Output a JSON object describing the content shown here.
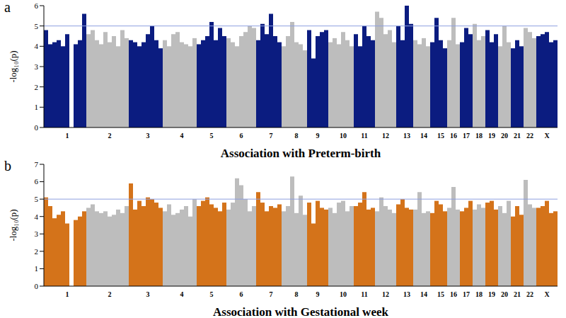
{
  "chart_data": [
    {
      "type": "bar",
      "panel_label": "a",
      "x_label": "Association with Preterm-birth",
      "y_label": "-log₁₀(p)",
      "categories": [
        null,
        null,
        null,
        null,
        null,
        "1",
        null,
        null,
        null,
        null,
        null,
        null,
        null,
        null,
        null,
        "2",
        null,
        null,
        null,
        null,
        null,
        null,
        null,
        null,
        "3",
        null,
        null,
        null,
        null,
        null,
        null,
        null,
        "4",
        null,
        null,
        null,
        null,
        null,
        null,
        "5",
        null,
        null,
        null,
        null,
        null,
        null,
        "6",
        null,
        null,
        null,
        null,
        null,
        null,
        "7",
        null,
        null,
        null,
        null,
        null,
        "8",
        null,
        null,
        null,
        null,
        "9",
        null,
        null,
        null,
        null,
        null,
        "10",
        null,
        null,
        null,
        null,
        "11",
        null,
        null,
        null,
        null,
        "12",
        null,
        null,
        null,
        null,
        "13",
        null,
        null,
        null,
        "14",
        null,
        null,
        null,
        "15",
        null,
        null,
        "16",
        null,
        null,
        "17",
        null,
        null,
        "18",
        null,
        null,
        "19",
        null,
        null,
        "20",
        null,
        null,
        "21",
        null,
        null,
        "22",
        null,
        null,
        null,
        "X",
        null,
        null
      ],
      "values": [
        4.8,
        4.1,
        4.2,
        4.3,
        4.0,
        4.6,
        null,
        4.1,
        4.3,
        5.6,
        4.6,
        4.8,
        4.3,
        4.1,
        4.7,
        4.2,
        4.5,
        4.0,
        4.8,
        4.4,
        4.3,
        4.2,
        4.0,
        4.2,
        4.6,
        5.0,
        4.3,
        3.9,
        4.3,
        4.0,
        4.6,
        4.7,
        4.2,
        4.1,
        4.0,
        4.4,
        4.1,
        4.3,
        4.5,
        5.2,
        4.3,
        4.9,
        4.5,
        4.4,
        4.2,
        4.0,
        4.5,
        4.7,
        5.0,
        4.9,
        4.3,
        5.1,
        4.6,
        5.6,
        4.5,
        4.2,
        4.0,
        4.5,
        5.2,
        4.2,
        4.1,
        3.8,
        4.8,
        3.4,
        4.5,
        4.7,
        4.8,
        4.2,
        4.4,
        4.1,
        4.7,
        4.3,
        4.0,
        4.6,
        4.0,
        5.0,
        4.5,
        4.3,
        5.7,
        5.4,
        4.6,
        4.8,
        4.2,
        5.0,
        4.3,
        6.0,
        5.1,
        4.3,
        4.1,
        4.4,
        4.0,
        4.2,
        5.4,
        4.3,
        3.9,
        4.3,
        5.4,
        4.1,
        4.2,
        4.9,
        4.6,
        5.1,
        4.3,
        4.5,
        4.8,
        4.2,
        4.6,
        4.0,
        5.0,
        4.2,
        3.9,
        4.3,
        4.0,
        4.9,
        4.7,
        4.4,
        4.5,
        4.6,
        4.7,
        4.2,
        4.3
      ],
      "colors": [
        "#0b1c80",
        "#0b1c80",
        "#0b1c80",
        "#0b1c80",
        "#0b1c80",
        "#0b1c80",
        "#0b1c80",
        "#0b1c80",
        "#0b1c80",
        "#0b1c80",
        "#bdbdbd",
        "#bdbdbd",
        "#bdbdbd",
        "#bdbdbd",
        "#bdbdbd",
        "#bdbdbd",
        "#bdbdbd",
        "#bdbdbd",
        "#bdbdbd",
        "#bdbdbd",
        "#0b1c80",
        "#0b1c80",
        "#0b1c80",
        "#0b1c80",
        "#0b1c80",
        "#0b1c80",
        "#0b1c80",
        "#0b1c80",
        "#bdbdbd",
        "#bdbdbd",
        "#bdbdbd",
        "#bdbdbd",
        "#bdbdbd",
        "#bdbdbd",
        "#bdbdbd",
        "#bdbdbd",
        "#0b1c80",
        "#0b1c80",
        "#0b1c80",
        "#0b1c80",
        "#0b1c80",
        "#0b1c80",
        "#0b1c80",
        "#bdbdbd",
        "#bdbdbd",
        "#bdbdbd",
        "#bdbdbd",
        "#bdbdbd",
        "#bdbdbd",
        "#bdbdbd",
        "#0b1c80",
        "#0b1c80",
        "#0b1c80",
        "#0b1c80",
        "#0b1c80",
        "#0b1c80",
        "#bdbdbd",
        "#bdbdbd",
        "#bdbdbd",
        "#bdbdbd",
        "#bdbdbd",
        "#bdbdbd",
        "#0b1c80",
        "#0b1c80",
        "#0b1c80",
        "#0b1c80",
        "#0b1c80",
        "#bdbdbd",
        "#bdbdbd",
        "#bdbdbd",
        "#bdbdbd",
        "#bdbdbd",
        "#bdbdbd",
        "#0b1c80",
        "#0b1c80",
        "#0b1c80",
        "#0b1c80",
        "#0b1c80",
        "#bdbdbd",
        "#bdbdbd",
        "#bdbdbd",
        "#bdbdbd",
        "#bdbdbd",
        "#0b1c80",
        "#0b1c80",
        "#0b1c80",
        "#0b1c80",
        "#bdbdbd",
        "#bdbdbd",
        "#bdbdbd",
        "#bdbdbd",
        "#0b1c80",
        "#0b1c80",
        "#0b1c80",
        "#0b1c80",
        "#bdbdbd",
        "#bdbdbd",
        "#bdbdbd",
        "#0b1c80",
        "#0b1c80",
        "#0b1c80",
        "#bdbdbd",
        "#bdbdbd",
        "#bdbdbd",
        "#0b1c80",
        "#0b1c80",
        "#0b1c80",
        "#bdbdbd",
        "#bdbdbd",
        "#bdbdbd",
        "#0b1c80",
        "#0b1c80",
        "#0b1c80",
        "#bdbdbd",
        "#bdbdbd",
        "#bdbdbd",
        "#0b1c80",
        "#0b1c80",
        "#0b1c80",
        "#0b1c80",
        "#0b1c80"
      ],
      "ylim": [
        0,
        6
      ],
      "yticks": [
        0,
        1,
        2,
        3,
        4,
        5,
        6
      ],
      "threshold": 5,
      "threshold_color": "#8e9fe0"
    },
    {
      "type": "bar",
      "panel_label": "b",
      "x_label": "Association with Gestational week",
      "y_label": "-log₁₀(p)",
      "categories": [
        null,
        null,
        null,
        null,
        null,
        "1",
        null,
        null,
        null,
        null,
        null,
        null,
        null,
        null,
        null,
        "2",
        null,
        null,
        null,
        null,
        null,
        null,
        null,
        null,
        "3",
        null,
        null,
        null,
        null,
        null,
        null,
        null,
        "4",
        null,
        null,
        null,
        null,
        null,
        null,
        "5",
        null,
        null,
        null,
        null,
        null,
        null,
        "6",
        null,
        null,
        null,
        null,
        null,
        null,
        "7",
        null,
        null,
        null,
        null,
        null,
        "8",
        null,
        null,
        null,
        null,
        "9",
        null,
        null,
        null,
        null,
        null,
        "10",
        null,
        null,
        null,
        null,
        "11",
        null,
        null,
        null,
        null,
        "12",
        null,
        null,
        null,
        null,
        "13",
        null,
        null,
        null,
        "14",
        null,
        null,
        null,
        "15",
        null,
        null,
        "16",
        null,
        null,
        "17",
        null,
        null,
        "18",
        null,
        null,
        "19",
        null,
        null,
        "20",
        null,
        null,
        "21",
        null,
        null,
        "22",
        null,
        null,
        null,
        "X",
        null,
        null
      ],
      "values": [
        5.1,
        4.6,
        3.9,
        4.1,
        4.3,
        3.6,
        null,
        3.8,
        4.0,
        4.3,
        4.5,
        4.7,
        4.3,
        4.2,
        4.3,
        4.0,
        4.1,
        4.4,
        4.2,
        4.6,
        5.9,
        4.4,
        4.9,
        4.6,
        5.1,
        5.0,
        4.8,
        4.5,
        4.3,
        4.7,
        4.1,
        4.2,
        4.4,
        4.6,
        4.0,
        5.0,
        4.6,
        4.9,
        5.1,
        4.7,
        4.5,
        4.3,
        4.8,
        4.4,
        4.8,
        6.2,
        5.8,
        5.0,
        4.3,
        4.6,
        5.4,
        4.8,
        4.3,
        4.6,
        4.5,
        4.7,
        4.3,
        4.6,
        6.3,
        4.2,
        5.2,
        4.1,
        4.8,
        3.6,
        4.9,
        4.5,
        4.4,
        4.5,
        4.2,
        4.8,
        4.9,
        4.3,
        4.6,
        4.6,
        4.8,
        5.4,
        4.4,
        4.5,
        4.3,
        5.1,
        4.6,
        4.4,
        4.2,
        4.7,
        5.0,
        4.5,
        4.4,
        4.4,
        5.4,
        4.2,
        4.3,
        4.2,
        4.9,
        4.7,
        4.3,
        4.5,
        5.7,
        4.4,
        4.3,
        4.5,
        4.9,
        4.4,
        4.7,
        4.5,
        4.8,
        4.9,
        4.4,
        4.6,
        4.2,
        4.9,
        4.0,
        4.6,
        4.1,
        6.1,
        4.7,
        4.5,
        4.5,
        4.6,
        4.9,
        4.2,
        4.3
      ],
      "colors": [
        "#d4731a",
        "#d4731a",
        "#d4731a",
        "#d4731a",
        "#d4731a",
        "#d4731a",
        "#d4731a",
        "#d4731a",
        "#d4731a",
        "#d4731a",
        "#bdbdbd",
        "#bdbdbd",
        "#bdbdbd",
        "#bdbdbd",
        "#bdbdbd",
        "#bdbdbd",
        "#bdbdbd",
        "#bdbdbd",
        "#bdbdbd",
        "#bdbdbd",
        "#d4731a",
        "#d4731a",
        "#d4731a",
        "#d4731a",
        "#d4731a",
        "#d4731a",
        "#d4731a",
        "#d4731a",
        "#bdbdbd",
        "#bdbdbd",
        "#bdbdbd",
        "#bdbdbd",
        "#bdbdbd",
        "#bdbdbd",
        "#bdbdbd",
        "#bdbdbd",
        "#d4731a",
        "#d4731a",
        "#d4731a",
        "#d4731a",
        "#d4731a",
        "#d4731a",
        "#d4731a",
        "#bdbdbd",
        "#bdbdbd",
        "#bdbdbd",
        "#bdbdbd",
        "#bdbdbd",
        "#bdbdbd",
        "#bdbdbd",
        "#d4731a",
        "#d4731a",
        "#d4731a",
        "#d4731a",
        "#d4731a",
        "#d4731a",
        "#bdbdbd",
        "#bdbdbd",
        "#bdbdbd",
        "#bdbdbd",
        "#bdbdbd",
        "#bdbdbd",
        "#d4731a",
        "#d4731a",
        "#d4731a",
        "#d4731a",
        "#d4731a",
        "#bdbdbd",
        "#bdbdbd",
        "#bdbdbd",
        "#bdbdbd",
        "#bdbdbd",
        "#bdbdbd",
        "#d4731a",
        "#d4731a",
        "#d4731a",
        "#d4731a",
        "#d4731a",
        "#bdbdbd",
        "#bdbdbd",
        "#bdbdbd",
        "#bdbdbd",
        "#bdbdbd",
        "#d4731a",
        "#d4731a",
        "#d4731a",
        "#d4731a",
        "#bdbdbd",
        "#bdbdbd",
        "#bdbdbd",
        "#bdbdbd",
        "#d4731a",
        "#d4731a",
        "#d4731a",
        "#d4731a",
        "#bdbdbd",
        "#bdbdbd",
        "#bdbdbd",
        "#d4731a",
        "#d4731a",
        "#d4731a",
        "#bdbdbd",
        "#bdbdbd",
        "#bdbdbd",
        "#d4731a",
        "#d4731a",
        "#d4731a",
        "#bdbdbd",
        "#bdbdbd",
        "#bdbdbd",
        "#d4731a",
        "#d4731a",
        "#d4731a",
        "#bdbdbd",
        "#bdbdbd",
        "#bdbdbd",
        "#d4731a",
        "#d4731a",
        "#d4731a",
        "#d4731a",
        "#d4731a"
      ],
      "ylim": [
        0,
        7
      ],
      "yticks": [
        0,
        1,
        2,
        3,
        4,
        5,
        6,
        7
      ],
      "threshold": 5,
      "threshold_color": "#8e9fe0"
    }
  ]
}
